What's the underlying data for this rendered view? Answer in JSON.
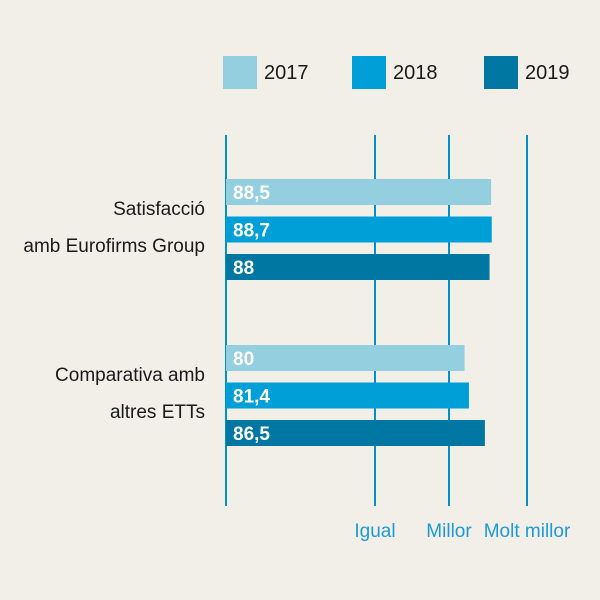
{
  "chart_data": {
    "type": "bar",
    "orientation": "horizontal",
    "categories": [
      [
        "Satisfacció",
        "amb Eurofirms Group"
      ],
      [
        "Comparativa amb",
        "altres ETTs"
      ]
    ],
    "series": [
      {
        "name": "2017",
        "color": "#94cfe0",
        "values": [
          88.5,
          80
        ]
      },
      {
        "name": "2018",
        "color": "#009fd8",
        "values": [
          88.7,
          81.4
        ]
      },
      {
        "name": "2019",
        "color": "#0076a3",
        "values": [
          88,
          86.5
        ]
      }
    ],
    "data_labels": [
      [
        "88,5",
        "80"
      ],
      [
        "88,7",
        "81,4"
      ],
      [
        "88",
        "86,5"
      ]
    ],
    "x_ticks": [
      {
        "value": 50,
        "label": "Igual"
      },
      {
        "value": 75,
        "label": "Millor"
      },
      {
        "value": 100,
        "label": "Molt millor"
      }
    ],
    "xlim": [
      0,
      100
    ],
    "grid": true,
    "legend_position": "top",
    "title": "",
    "xlabel": "",
    "ylabel": "",
    "colors": {
      "axis": "#0090cc",
      "tick_text": "#1d9ad6",
      "background": "#f2efe9"
    }
  }
}
